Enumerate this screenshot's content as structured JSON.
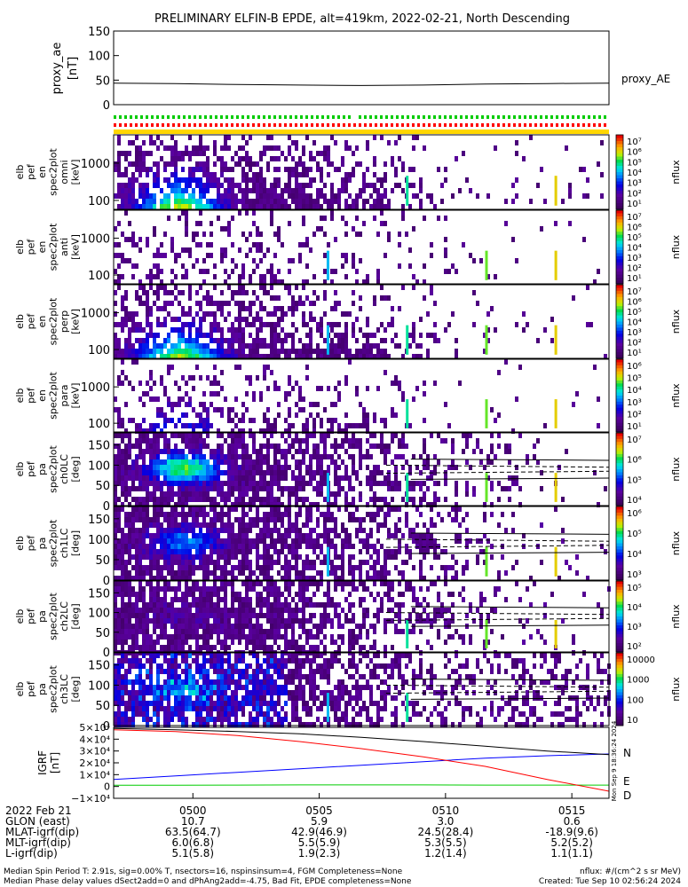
{
  "title": "PRELIMINARY ELFIN-B EPDE, alt=419km, 2022-02-21, North Descending",
  "proxy_ae": {
    "ylabel": [
      "proxy_ae",
      "[nT]"
    ],
    "ticks": [
      "150",
      "100",
      "50",
      "0"
    ],
    "series_name": "proxy_AE",
    "ylim": [
      0,
      150
    ],
    "values": [
      44,
      43,
      41,
      40,
      39,
      40,
      42,
      43,
      44
    ]
  },
  "panels": [
    {
      "id": "spec-omni",
      "ylabel": [
        "elb",
        "pef",
        "en",
        "spec2plot",
        "omni",
        "[keV]"
      ],
      "ticks": [
        "1000",
        "100"
      ],
      "cbar_ticks": [
        "10⁷",
        "10⁶",
        "10⁵",
        "10⁴",
        "10³",
        "10²",
        "10¹"
      ],
      "cbar_label": "nflux",
      "type": "energy",
      "band": 1.0
    },
    {
      "id": "spec-anti",
      "ylabel": [
        "elb",
        "pef",
        "en",
        "spec2plot",
        "anti",
        "[keV]"
      ],
      "ticks": [
        "1000",
        "100"
      ],
      "cbar_ticks": [
        "10⁷",
        "10⁶",
        "10⁵",
        "10⁴",
        "10³",
        "10²",
        "10¹"
      ],
      "cbar_label": "nflux",
      "type": "energy",
      "band": 0.05
    },
    {
      "id": "spec-perp",
      "ylabel": [
        "elb",
        "pef",
        "en",
        "spec2plot",
        "perp",
        "[keV]"
      ],
      "ticks": [
        "1000",
        "100"
      ],
      "cbar_ticks": [
        "10⁷",
        "10⁶",
        "10⁵",
        "10⁴",
        "10³",
        "10²",
        "10¹"
      ],
      "cbar_label": "nflux",
      "type": "energy",
      "band": 0.95
    },
    {
      "id": "spec-para",
      "ylabel": [
        "elb",
        "pef",
        "en",
        "spec2plot",
        "para",
        "[keV]"
      ],
      "ticks": [
        "1000",
        "100"
      ],
      "cbar_ticks": [
        "10⁶",
        "10⁵",
        "10⁴",
        "10³",
        "10²",
        "10¹"
      ],
      "cbar_label": "nflux",
      "type": "energy",
      "band": 0.35
    },
    {
      "id": "pa-ch0",
      "ylabel": [
        "elb",
        "pef",
        "pa",
        "spec2plot",
        "ch0LC",
        "[deg]"
      ],
      "ticks": [
        "150",
        "100",
        "50",
        "0"
      ],
      "cbar_ticks": [
        "10⁷",
        "10⁶",
        "10⁵",
        "10⁴"
      ],
      "cbar_label": "nflux",
      "type": "pitch",
      "band": 1.0
    },
    {
      "id": "pa-ch1",
      "ylabel": [
        "elb",
        "pef",
        "pa",
        "spec2plot",
        "ch1LC",
        "[deg]"
      ],
      "ticks": [
        "150",
        "100",
        "50",
        "0"
      ],
      "cbar_ticks": [
        "10⁶",
        "10⁵",
        "10⁴",
        "10³"
      ],
      "cbar_label": "nflux",
      "type": "pitch",
      "band": 0.6
    },
    {
      "id": "pa-ch2",
      "ylabel": [
        "elb",
        "pef",
        "pa",
        "spec2plot",
        "ch2LC",
        "[deg]"
      ],
      "ticks": [
        "150",
        "100",
        "50",
        "0"
      ],
      "cbar_ticks": [
        "10⁵",
        "10⁴",
        "10³",
        "10²"
      ],
      "cbar_label": "nflux",
      "type": "pitch",
      "band": 0.1
    },
    {
      "id": "pa-ch3",
      "ylabel": [
        "elb",
        "pef",
        "pa",
        "spec2plot",
        "ch3LC",
        "[deg]"
      ],
      "ticks": [
        "150",
        "100",
        "50",
        "0"
      ],
      "cbar_ticks": [
        "10000",
        "1000",
        "100",
        "10"
      ],
      "cbar_label": "nflux",
      "type": "pitch",
      "band": 0.35
    }
  ],
  "igrf": {
    "ylabel": [
      "IGRF",
      "[nT]"
    ],
    "ticks": [
      "5×10⁴",
      "4×10⁴",
      "3×10⁴",
      "2×10⁴",
      "1×10⁴",
      "0",
      "−1×10⁴"
    ],
    "ylim": [
      -10000,
      50000
    ],
    "series": [
      {
        "name": "N",
        "color": "#0000ff",
        "values": [
          6000,
          9000,
          12000,
          15000,
          18000,
          21000,
          24000,
          26000,
          27500
        ]
      },
      {
        "name": "E",
        "color": "#00cc00",
        "values": [
          1000,
          1100,
          1200,
          1300,
          1300,
          1300,
          1200,
          1200,
          1200
        ]
      },
      {
        "name": "D",
        "color": "#ff0000",
        "values": [
          48000,
          46500,
          43000,
          38000,
          32000,
          25000,
          17000,
          6000,
          -4000
        ]
      },
      {
        "name": "",
        "color": "#000000",
        "values": [
          49000,
          48000,
          46500,
          44500,
          41500,
          38000,
          34000,
          30000,
          27000
        ]
      }
    ],
    "side_note": "Mon Sep 9 18:36:24 2024"
  },
  "x_axis": {
    "ticks": [
      "0500",
      "0505",
      "0510",
      "0515"
    ],
    "start_label": "2022 Feb 21"
  },
  "ephemeris": [
    {
      "label": "GLON (east)",
      "values": [
        "10.7",
        "5.9",
        "3.0",
        "0.6"
      ]
    },
    {
      "label": "MLAT-igrf(dip)",
      "values": [
        "63.5(64.7)",
        "42.9(46.9)",
        "24.5(28.4)",
        "-18.9(9.6)"
      ]
    },
    {
      "label": "MLT-igrf(dip)",
      "values": [
        "6.0(6.8)",
        "5.5(5.9)",
        "5.3(5.5)",
        "5.2(5.2)"
      ]
    },
    {
      "label": "L-igrf(dip)",
      "values": [
        "5.1(5.8)",
        "1.9(2.3)",
        "1.2(1.4)",
        "1.1(1.1)"
      ]
    }
  ],
  "footer": {
    "line1": "Median Spin Period T: 2.91s, sig=0.00% T, nsectors=16, nspinsinsum=4, FGM Completeness=None",
    "line2": "Median Phase delay values dSect2add=0 and dPhAng2add=-4.75, Bad Fit, EPDE completeness=None",
    "right1": "nflux: #/(cm^2 s sr MeV)",
    "right2": "Created: Tue Sep 10 02:56:24 2024"
  },
  "colors": {
    "status_green": "#00cc00",
    "status_red": "#ff0000",
    "status_yellow": "#ffd700"
  }
}
